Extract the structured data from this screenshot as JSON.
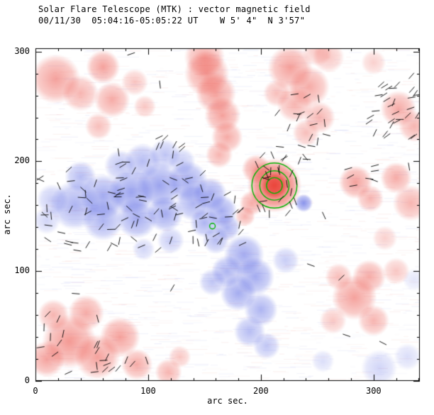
{
  "title": {
    "line1": "Solar Flare Telescope (MTK) : vector magnetic field",
    "line2": "00/11/30  05:04:16-05:05:22 UT    W 5' 4\"  N 3'57\""
  },
  "axes": {
    "x_label": "arc sec.",
    "y_label": "arc sec.",
    "x_ticks": [
      0,
      100,
      200,
      300
    ],
    "y_ticks": [
      0,
      100,
      200,
      300
    ],
    "x_range": [
      0,
      341
    ],
    "y_range": [
      0,
      303
    ],
    "minor_step": 20
  },
  "colors": {
    "positive": "235,70,60",
    "negative": "75,90,225",
    "contour": "#00b400",
    "axis": "#000000",
    "vector": "#000000",
    "background": "#ffffff"
  },
  "chart_data": {
    "type": "heatmap",
    "title": "Solar Flare Telescope (MTK) : vector magnetic field",
    "subtitle": "00/11/30  05:04:16-05:05:22 UT    W 5' 4\"  N 3'57\"",
    "xlabel": "arc sec.",
    "ylabel": "arc sec.",
    "xlim": [
      0,
      341
    ],
    "ylim": [
      0,
      303
    ],
    "red_blobs": [
      [
        18,
        275,
        22,
        0.5
      ],
      [
        40,
        262,
        16,
        0.4
      ],
      [
        60,
        286,
        15,
        0.5
      ],
      [
        68,
        256,
        16,
        0.45
      ],
      [
        56,
        232,
        12,
        0.35
      ],
      [
        88,
        272,
        12,
        0.3
      ],
      [
        97,
        250,
        10,
        0.3
      ],
      [
        150,
        295,
        18,
        0.45
      ],
      [
        152,
        280,
        20,
        0.5
      ],
      [
        160,
        262,
        18,
        0.5
      ],
      [
        166,
        242,
        16,
        0.5
      ],
      [
        170,
        222,
        14,
        0.45
      ],
      [
        163,
        206,
        12,
        0.4
      ],
      [
        226,
        285,
        20,
        0.5
      ],
      [
        243,
        268,
        18,
        0.45
      ],
      [
        230,
        252,
        16,
        0.4
      ],
      [
        252,
        240,
        14,
        0.4
      ],
      [
        240,
        226,
        12,
        0.35
      ],
      [
        214,
        262,
        12,
        0.35
      ],
      [
        260,
        295,
        14,
        0.3
      ],
      [
        322,
        248,
        16,
        0.45
      ],
      [
        336,
        232,
        14,
        0.4
      ],
      [
        320,
        185,
        14,
        0.45
      ],
      [
        333,
        162,
        16,
        0.4
      ],
      [
        212,
        178,
        24,
        0.85
      ],
      [
        212,
        178,
        12,
        0.95
      ],
      [
        196,
        193,
        13,
        0.5
      ],
      [
        192,
        162,
        11,
        0.45
      ],
      [
        186,
        150,
        9,
        0.4
      ],
      [
        284,
        181,
        15,
        0.5
      ],
      [
        297,
        166,
        12,
        0.4
      ],
      [
        310,
        130,
        11,
        0.25
      ],
      [
        30,
        36,
        24,
        0.55
      ],
      [
        55,
        22,
        20,
        0.5
      ],
      [
        75,
        40,
        18,
        0.5
      ],
      [
        45,
        62,
        16,
        0.45
      ],
      [
        16,
        60,
        14,
        0.4
      ],
      [
        90,
        15,
        14,
        0.45
      ],
      [
        10,
        20,
        16,
        0.5
      ],
      [
        118,
        8,
        12,
        0.4
      ],
      [
        128,
        22,
        10,
        0.3
      ],
      [
        283,
        76,
        20,
        0.5
      ],
      [
        296,
        95,
        15,
        0.45
      ],
      [
        269,
        95,
        12,
        0.35
      ],
      [
        300,
        55,
        14,
        0.4
      ],
      [
        264,
        55,
        12,
        0.3
      ],
      [
        320,
        100,
        12,
        0.3
      ],
      [
        300,
        290,
        11,
        0.25
      ],
      [
        250,
        300,
        13,
        0.3
      ]
    ],
    "blue_blobs": [
      [
        35,
        160,
        22,
        0.45
      ],
      [
        60,
        168,
        20,
        0.5
      ],
      [
        85,
        172,
        20,
        0.55
      ],
      [
        110,
        178,
        20,
        0.55
      ],
      [
        135,
        182,
        18,
        0.5
      ],
      [
        60,
        146,
        18,
        0.45
      ],
      [
        90,
        148,
        18,
        0.5
      ],
      [
        115,
        152,
        16,
        0.5
      ],
      [
        140,
        162,
        16,
        0.45
      ],
      [
        40,
        186,
        14,
        0.4
      ],
      [
        15,
        165,
        14,
        0.3
      ],
      [
        10,
        146,
        12,
        0.25
      ],
      [
        95,
        200,
        16,
        0.4
      ],
      [
        115,
        206,
        14,
        0.35
      ],
      [
        75,
        196,
        14,
        0.35
      ],
      [
        130,
        200,
        12,
        0.3
      ],
      [
        155,
        170,
        15,
        0.5
      ],
      [
        165,
        155,
        14,
        0.5
      ],
      [
        150,
        144,
        13,
        0.45
      ],
      [
        170,
        140,
        12,
        0.45
      ],
      [
        160,
        128,
        12,
        0.4
      ],
      [
        185,
        115,
        18,
        0.5
      ],
      [
        195,
        95,
        17,
        0.5
      ],
      [
        180,
        80,
        16,
        0.5
      ],
      [
        200,
        65,
        15,
        0.45
      ],
      [
        190,
        45,
        14,
        0.4
      ],
      [
        205,
        32,
        12,
        0.35
      ],
      [
        170,
        100,
        14,
        0.45
      ],
      [
        157,
        90,
        12,
        0.35
      ],
      [
        222,
        110,
        12,
        0.3
      ],
      [
        238,
        162,
        8,
        0.65
      ],
      [
        120,
        128,
        12,
        0.3
      ],
      [
        96,
        120,
        10,
        0.25
      ],
      [
        305,
        12,
        16,
        0.25
      ],
      [
        330,
        22,
        12,
        0.2
      ],
      [
        255,
        18,
        10,
        0.2
      ],
      [
        336,
        92,
        10,
        0.15
      ]
    ],
    "contours": [
      {
        "center": [
          212,
          178
        ],
        "radii": [
          7,
          13,
          20
        ]
      },
      {
        "center": [
          157,
          141
        ],
        "radii": [
          2.5
        ]
      }
    ],
    "vector_clusters": [
      {
        "x0": 3,
        "y0": 118,
        "x1": 150,
        "y1": 200,
        "n": 70,
        "angle": 30,
        "spread": 150
      },
      {
        "x0": 60,
        "y0": 196,
        "x1": 135,
        "y1": 222,
        "n": 12,
        "angle": 60,
        "spread": 90
      },
      {
        "x0": 140,
        "y0": 118,
        "x1": 186,
        "y1": 178,
        "n": 22,
        "angle": 45,
        "spread": 130
      },
      {
        "x0": 192,
        "y0": 148,
        "x1": 242,
        "y1": 206,
        "n": 26,
        "angle": 0,
        "spread": 200
      },
      {
        "x0": 212,
        "y0": 210,
        "x1": 268,
        "y1": 262,
        "n": 18,
        "angle": 40,
        "spread": 120
      },
      {
        "x0": 296,
        "y0": 222,
        "x1": 340,
        "y1": 272,
        "n": 30,
        "angle": 35,
        "spread": 70
      },
      {
        "x0": 276,
        "y0": 168,
        "x1": 302,
        "y1": 198,
        "n": 7,
        "angle": 20,
        "spread": 90
      },
      {
        "x0": 3,
        "y0": 6,
        "x1": 62,
        "y1": 62,
        "n": 16,
        "angle": 50,
        "spread": 110
      },
      {
        "x0": 52,
        "y0": 0,
        "x1": 88,
        "y1": 22,
        "n": 7,
        "angle": 60,
        "spread": 80
      },
      {
        "x0": 0,
        "y0": 0,
        "x1": 340,
        "y1": 302,
        "n": 18,
        "angle": 0,
        "spread": 360
      }
    ],
    "vector_length": 7,
    "noise": {
      "n": 1500,
      "alpha_max": 0.09
    }
  }
}
